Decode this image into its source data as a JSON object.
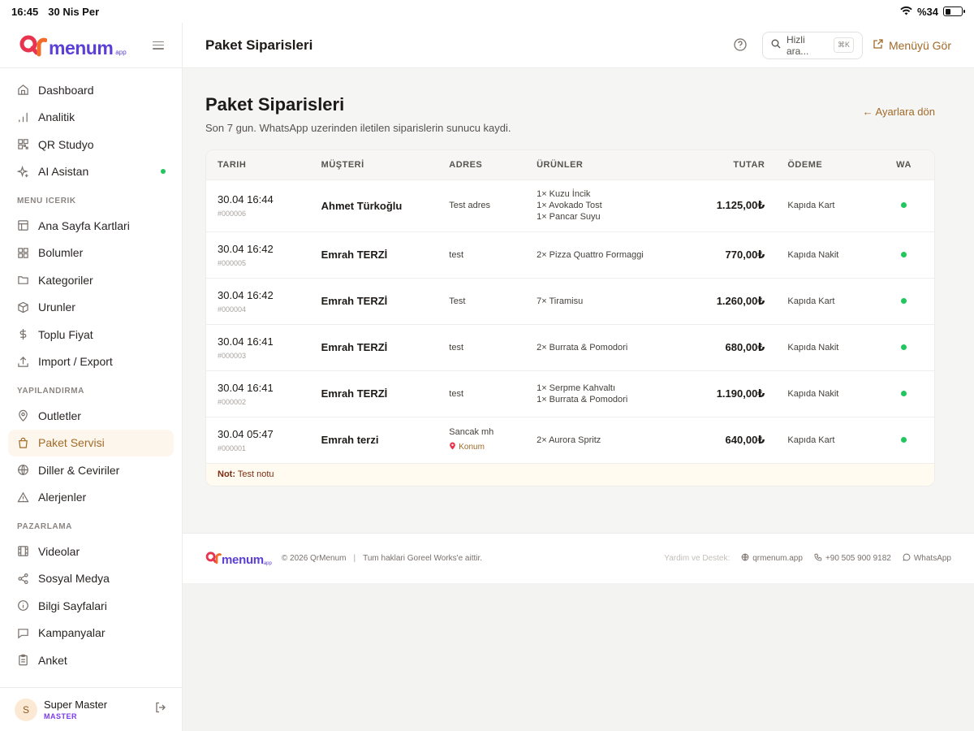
{
  "status_bar": {
    "time": "16:45",
    "date": "30 Nis Per",
    "battery": "%34",
    "battery_level": 0.34
  },
  "brand": {
    "wordmark": "menum",
    "suffix": "app"
  },
  "sidebar": {
    "top_items": [
      {
        "label": "Dashboard",
        "icon": "home-icon"
      },
      {
        "label": "Analitik",
        "icon": "bar-chart-icon"
      },
      {
        "label": "QR Studyo",
        "icon": "qr-grid-icon"
      },
      {
        "label": "AI Asistan",
        "icon": "sparkle-icon"
      }
    ],
    "section_menu": "MENU ICERIK",
    "menu_items": [
      {
        "label": "Ana Sayfa Kartlari",
        "icon": "layout-icon"
      },
      {
        "label": "Bolumler",
        "icon": "grid-icon"
      },
      {
        "label": "Kategoriler",
        "icon": "folder-icon"
      },
      {
        "label": "Urunler",
        "icon": "box-icon"
      },
      {
        "label": "Toplu Fiyat",
        "icon": "dollar-icon"
      },
      {
        "label": "Import / Export",
        "icon": "upload-icon"
      }
    ],
    "section_config": "YAPILANDIRMA",
    "config_items": [
      {
        "label": "Outletler",
        "icon": "map-pin-icon"
      },
      {
        "label": "Paket Servisi",
        "icon": "package-icon"
      },
      {
        "label": "Diller & Ceviriler",
        "icon": "globe-icon"
      },
      {
        "label": "Alerjenler",
        "icon": "warning-icon"
      }
    ],
    "section_marketing": "PAZARLAMA",
    "marketing_items": [
      {
        "label": "Videolar",
        "icon": "film-icon"
      },
      {
        "label": "Sosyal Medya",
        "icon": "share-icon"
      },
      {
        "label": "Bilgi Sayfalari",
        "icon": "info-icon"
      },
      {
        "label": "Kampanyalar",
        "icon": "chat-icon"
      },
      {
        "label": "Anket",
        "icon": "clipboard-icon"
      }
    ],
    "user": {
      "initial": "S",
      "name": "Super Master",
      "role": "MASTER"
    }
  },
  "topbar": {
    "title": "Paket Siparisleri",
    "search_placeholder": "Hizli ara...",
    "search_shortcut": "⌘K",
    "view_menu": "Menüyü Gör"
  },
  "page": {
    "title": "Paket Siparisleri",
    "subtitle": "Son 7 gun. WhatsApp uzerinden iletilen siparislerin sunucu kaydi.",
    "back_link": "← Ayarlara dön"
  },
  "orders": {
    "columns": [
      "TARIH",
      "MÜŞTERİ",
      "ADRES",
      "ÜRÜNLER",
      "TUTAR",
      "ÖDEME",
      "WA"
    ],
    "rows": [
      {
        "date": "30.04 16:44",
        "id": "#000006",
        "customer": "Ahmet Türkoğlu",
        "address": "Test adres",
        "location": "",
        "items": [
          "1× Kuzu İncik",
          "1× Avokado Tost",
          "1× Pancar Suyu"
        ],
        "amount": "1.125,00₺",
        "payment": "Kapıda Kart"
      },
      {
        "date": "30.04 16:42",
        "id": "#000005",
        "customer": "Emrah TERZİ",
        "address": "test",
        "location": "",
        "items": [
          "2× Pizza Quattro Formaggi"
        ],
        "amount": "770,00₺",
        "payment": "Kapıda Nakit"
      },
      {
        "date": "30.04 16:42",
        "id": "#000004",
        "customer": "Emrah TERZİ",
        "address": "Test",
        "location": "",
        "items": [
          "7× Tiramisu"
        ],
        "amount": "1.260,00₺",
        "payment": "Kapıda Kart"
      },
      {
        "date": "30.04 16:41",
        "id": "#000003",
        "customer": "Emrah TERZİ",
        "address": "test",
        "location": "",
        "items": [
          "2× Burrata & Pomodori"
        ],
        "amount": "680,00₺",
        "payment": "Kapıda Nakit"
      },
      {
        "date": "30.04 16:41",
        "id": "#000002",
        "customer": "Emrah TERZİ",
        "address": "test",
        "location": "",
        "items": [
          "1× Serpme Kahvaltı",
          "1× Burrata & Pomodori"
        ],
        "amount": "1.190,00₺",
        "payment": "Kapıda Nakit"
      },
      {
        "date": "30.04 05:47",
        "id": "#000001",
        "customer": "Emrah terzi",
        "address": "Sancak mh",
        "location": "Konum",
        "items": [
          "2× Aurora Spritz"
        ],
        "amount": "640,00₺",
        "payment": "Kapıda Kart"
      }
    ],
    "note_label": "Not:",
    "note_text": "Test notu"
  },
  "footer": {
    "copyright": "© 2026 QrMenum",
    "rights": "Tum haklari Goreel Works'e aittir.",
    "support_label": "Yardim ve Destek:",
    "website": "qrmenum.app",
    "phone": "+90 505 900 9182",
    "whatsapp": "WhatsApp"
  }
}
